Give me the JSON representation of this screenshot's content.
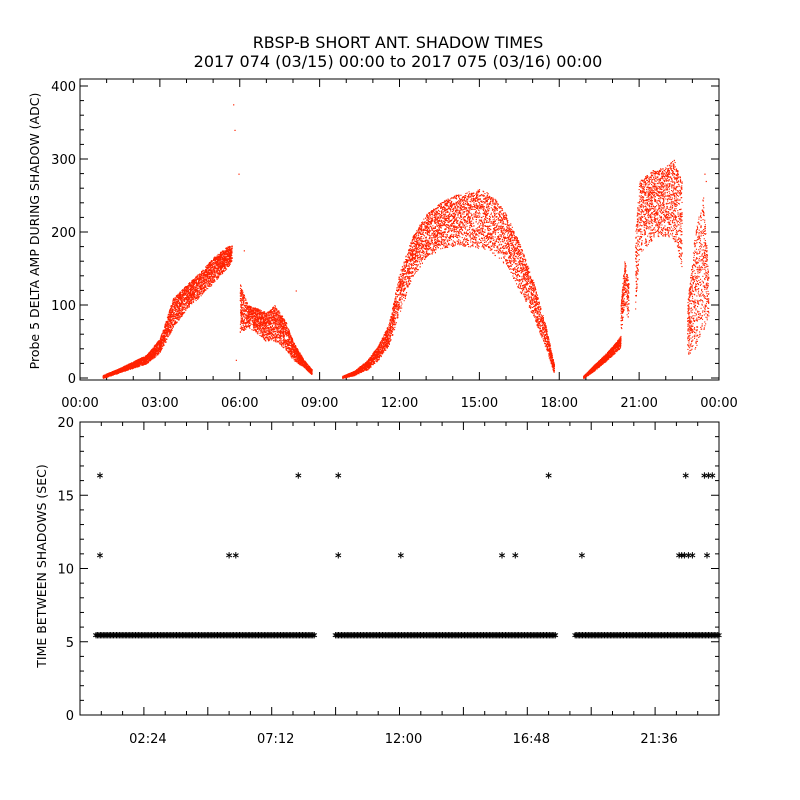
{
  "title": {
    "line1": "RBSP-B SHORT ANT. SHADOW TIMES",
    "line2": "2017 074 (03/15) 00:00 to 2017 075 (03/16) 00:00"
  },
  "colors": {
    "amp_points": "#ff2200",
    "markers": "#000000",
    "axes": "#000000"
  },
  "chart_data": [
    {
      "type": "scatter",
      "ylabel": "Probe 5 DELTA AMP DURING SHADOW (ADC)",
      "xlabel": "",
      "x_unit": "hours",
      "xlim": [
        0,
        24
      ],
      "ylim": [
        0,
        400
      ],
      "x_tick_labels": [
        "00:00",
        "03:00",
        "06:00",
        "09:00",
        "12:00",
        "15:00",
        "18:00",
        "21:00",
        "00:00"
      ],
      "y_tick_labels": [
        "0",
        "100",
        "200",
        "300",
        "400"
      ],
      "grid": false,
      "segments": [
        {
          "name": "pass-1",
          "x": [
            0.85,
            1.5,
            2.5,
            3.0,
            3.5,
            4.0,
            4.5,
            5.0,
            5.5,
            5.7
          ],
          "y_low": [
            0,
            8,
            20,
            35,
            70,
            95,
            112,
            130,
            150,
            160
          ],
          "y_high": [
            4,
            14,
            32,
            55,
            110,
            128,
            145,
            165,
            180,
            182
          ]
        },
        {
          "name": "pass-1-cont",
          "x": [
            6.0,
            6.3,
            6.7,
            7.0,
            7.3,
            7.7,
            8.0,
            8.4,
            8.7
          ],
          "y_low": [
            60,
            70,
            60,
            50,
            50,
            40,
            25,
            15,
            5
          ],
          "y_high": [
            130,
            100,
            95,
            90,
            100,
            80,
            50,
            25,
            12
          ]
        },
        {
          "name": "pass-2",
          "x": [
            9.85,
            10.3,
            10.8,
            11.2,
            11.6,
            12.0,
            12.5,
            13.0,
            13.5,
            14.0,
            14.5,
            15.0,
            15.5,
            16.0,
            16.5,
            17.0,
            17.5,
            17.8
          ],
          "y_low": [
            0,
            4,
            12,
            25,
            45,
            90,
            140,
            165,
            175,
            180,
            180,
            178,
            170,
            155,
            120,
            85,
            40,
            5
          ],
          "y_high": [
            3,
            10,
            25,
            45,
            75,
            145,
            195,
            225,
            240,
            250,
            255,
            260,
            250,
            225,
            185,
            135,
            70,
            18
          ]
        },
        {
          "name": "pass-3",
          "x": [
            18.9,
            19.3,
            19.7,
            20.1,
            20.3
          ],
          "y_low": [
            0,
            10,
            22,
            35,
            42
          ],
          "y_high": [
            3,
            18,
            32,
            48,
            58
          ]
        },
        {
          "name": "pass-3-cont",
          "x": [
            20.3,
            20.45,
            20.6
          ],
          "y_low": [
            60,
            95,
            80
          ],
          "y_high": [
            100,
            165,
            135
          ]
        },
        {
          "name": "pass-3-high",
          "x": [
            20.85,
            21.0,
            21.5,
            22.0,
            22.3,
            22.6
          ],
          "y_low": [
            90,
            170,
            190,
            195,
            190,
            150
          ],
          "y_high": [
            200,
            270,
            285,
            290,
            300,
            270
          ]
        },
        {
          "name": "pass-3-tail",
          "x": [
            22.8,
            23.1,
            23.4,
            23.6
          ],
          "y_low": [
            30,
            40,
            60,
            80
          ],
          "y_high": [
            100,
            200,
            250,
            140
          ]
        }
      ],
      "outliers": [
        {
          "x": 5.75,
          "y": 375
        },
        {
          "x": 5.8,
          "y": 340
        },
        {
          "x": 5.95,
          "y": 280
        },
        {
          "x": 5.85,
          "y": 25
        },
        {
          "x": 6.15,
          "y": 175
        },
        {
          "x": 8.1,
          "y": 120
        },
        {
          "x": 23.45,
          "y": 280
        },
        {
          "x": 23.5,
          "y": 270
        },
        {
          "x": 22.9,
          "y": 35
        }
      ]
    },
    {
      "type": "scatter",
      "ylabel": "TIME BETWEEN SHADOWS (SEC)",
      "xlabel": "",
      "x_unit": "hours",
      "xlim": [
        0,
        24
      ],
      "ylim": [
        0,
        20
      ],
      "x_tick_labels": [
        "02:24",
        "07:12",
        "12:00",
        "16:48",
        "21:36"
      ],
      "y_tick_labels": [
        "0",
        "5",
        "10",
        "15",
        "20"
      ],
      "grid": false,
      "marker": "asterisk",
      "baseline": {
        "y": 5.45,
        "x_ranges": [
          [
            0.6,
            8.8
          ],
          [
            9.6,
            17.9
          ],
          [
            18.6,
            24.0
          ]
        ]
      },
      "points": [
        {
          "x": 0.75,
          "y": 16.35
        },
        {
          "x": 0.75,
          "y": 10.9
        },
        {
          "x": 5.6,
          "y": 10.9
        },
        {
          "x": 5.85,
          "y": 10.9
        },
        {
          "x": 8.2,
          "y": 16.35
        },
        {
          "x": 9.7,
          "y": 16.35
        },
        {
          "x": 9.7,
          "y": 10.9
        },
        {
          "x": 12.05,
          "y": 10.9
        },
        {
          "x": 15.85,
          "y": 10.9
        },
        {
          "x": 16.35,
          "y": 10.9
        },
        {
          "x": 17.6,
          "y": 16.35
        },
        {
          "x": 18.85,
          "y": 10.9
        },
        {
          "x": 22.5,
          "y": 10.9
        },
        {
          "x": 22.6,
          "y": 10.9
        },
        {
          "x": 22.7,
          "y": 10.9
        },
        {
          "x": 22.85,
          "y": 10.9
        },
        {
          "x": 23.0,
          "y": 10.9
        },
        {
          "x": 22.75,
          "y": 16.35
        },
        {
          "x": 23.45,
          "y": 16.35
        },
        {
          "x": 23.6,
          "y": 16.35
        },
        {
          "x": 23.75,
          "y": 16.35
        },
        {
          "x": 23.55,
          "y": 10.9
        }
      ]
    }
  ]
}
